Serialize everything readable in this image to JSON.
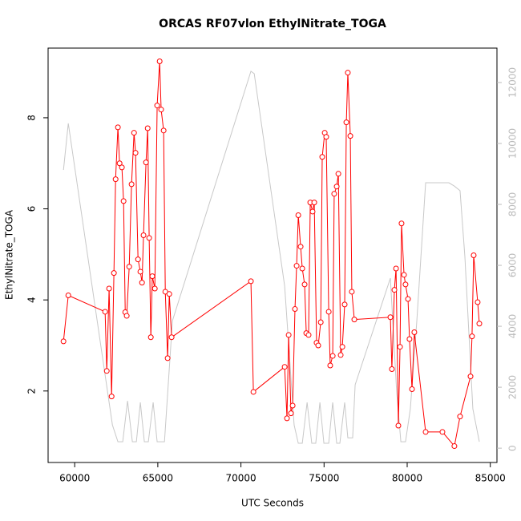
{
  "chart_data": {
    "type": "line",
    "title": "ORCAS RF07vlon EthylNitrate_TOGA",
    "xlabel": "UTC Seconds",
    "ylabel": "EthylNitrate_TOGA",
    "xlim": [
      58400,
      85400
    ],
    "ylim": [
      0.43,
      9.53
    ],
    "y2lim": [
      -470,
      13130
    ],
    "xticks": [
      60000,
      65000,
      70000,
      75000,
      80000,
      85000
    ],
    "yticks": [
      2,
      4,
      6,
      8
    ],
    "y2ticks": [
      0,
      2000,
      4000,
      6000,
      8000,
      10000,
      12000
    ],
    "series": [
      {
        "color": "#ff0000",
        "markers": true,
        "x": [
          59325,
          59615,
          61830,
          61930,
          62070,
          62220,
          62360,
          62460,
          62600,
          62700,
          62840,
          62940,
          63040,
          63130,
          63280,
          63420,
          63570,
          63660,
          63810,
          63950,
          64050,
          64140,
          64290,
          64390,
          64480,
          64580,
          64670,
          64820,
          64960,
          65110,
          65200,
          65350,
          65450,
          65590,
          65690,
          65830,
          70600,
          70750,
          72630,
          72770,
          72870,
          73010,
          73110,
          73250,
          73350,
          73450,
          73590,
          73690,
          73830,
          73930,
          74070,
          74170,
          74310,
          74410,
          74550,
          74650,
          74800,
          74890,
          75040,
          75130,
          75280,
          75370,
          75520,
          75610,
          75760,
          75860,
          76000,
          76100,
          76240,
          76340,
          76430,
          76580,
          76670,
          76820,
          78990,
          79080,
          79230,
          79330,
          79470,
          79570,
          79660,
          79810,
          79900,
          80050,
          80140,
          80290,
          80430,
          81110,
          82120,
          82840,
          83180,
          83810,
          83900,
          84000,
          84240,
          84340
        ],
        "values": [
          3.09,
          4.1,
          3.74,
          2.44,
          4.25,
          1.88,
          4.59,
          6.65,
          7.79,
          7.0,
          6.91,
          6.17,
          3.73,
          3.65,
          4.73,
          6.54,
          7.67,
          7.23,
          4.89,
          4.62,
          4.38,
          5.42,
          7.02,
          7.77,
          5.36,
          3.18,
          4.52,
          4.25,
          8.27,
          9.24,
          8.18,
          7.72,
          4.18,
          2.72,
          4.13,
          3.18,
          4.41,
          1.98,
          2.53,
          1.4,
          3.23,
          1.51,
          1.68,
          3.8,
          4.75,
          5.86,
          5.17,
          4.69,
          4.34,
          3.27,
          3.23,
          6.14,
          5.94,
          6.14,
          3.06,
          3.0,
          3.51,
          7.14,
          7.67,
          7.58,
          3.74,
          2.56,
          2.77,
          6.33,
          6.49,
          6.77,
          2.79,
          2.97,
          3.9,
          7.9,
          8.99,
          7.6,
          4.18,
          3.57,
          3.62,
          2.48,
          4.22,
          4.69,
          1.24,
          2.97,
          5.68,
          4.55,
          4.34,
          4.02,
          3.14,
          2.04,
          3.29,
          1.1,
          1.1,
          0.79,
          1.44,
          2.32,
          3.2,
          4.98,
          3.95,
          3.48
        ]
      },
      {
        "color": "#c8c8c8",
        "markers": false,
        "axis": "y2",
        "x": [
          59325,
          59615,
          62270,
          62600,
          62890,
          63180,
          63470,
          63710,
          63950,
          64190,
          64430,
          64720,
          64960,
          65400,
          65880,
          70600,
          70800,
          72630,
          73200,
          73450,
          73690,
          73980,
          74260,
          74500,
          74750,
          74990,
          75280,
          75520,
          75760,
          75950,
          76240,
          76430,
          76720,
          76870,
          78990,
          79370,
          79620,
          79900,
          80190,
          80580,
          81110,
          82510,
          82840,
          83180,
          83470,
          83950,
          84340
        ],
        "values": [
          9130,
          10660,
          760,
          210,
          210,
          1550,
          210,
          210,
          1500,
          210,
          210,
          1500,
          210,
          210,
          4180,
          12370,
          12290,
          5320,
          760,
          160,
          160,
          1500,
          160,
          160,
          1500,
          160,
          160,
          1500,
          160,
          160,
          1500,
          340,
          340,
          2080,
          5580,
          1820,
          210,
          210,
          1290,
          4180,
          8710,
          8710,
          8600,
          8450,
          6290,
          1290,
          210
        ]
      }
    ]
  }
}
